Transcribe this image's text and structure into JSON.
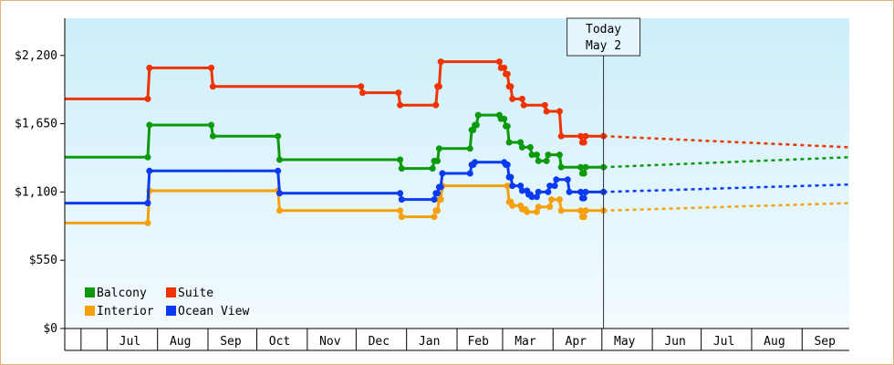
{
  "chart_data": {
    "type": "line",
    "title": "",
    "xlabel": "",
    "ylabel": "",
    "ylim": [
      0,
      2500
    ],
    "y_ticks": [
      {
        "value": 0,
        "label": "$0"
      },
      {
        "value": 550,
        "label": "$550"
      },
      {
        "value": 1100,
        "label": "$1,100"
      },
      {
        "value": 1650,
        "label": "$1,650"
      },
      {
        "value": 2200,
        "label": "$2,200"
      }
    ],
    "x_start": "2024-06-05",
    "x_end": "2025-09-30",
    "month_labels": [
      {
        "date": "2024-07-15",
        "label": "Jul"
      },
      {
        "date": "2024-08-15",
        "label": "Aug"
      },
      {
        "date": "2024-09-15",
        "label": "Sep"
      },
      {
        "date": "2024-10-15",
        "label": "Oct"
      },
      {
        "date": "2024-11-15",
        "label": "Nov"
      },
      {
        "date": "2024-12-15",
        "label": "Dec"
      },
      {
        "date": "2025-01-15",
        "label": "Jan"
      },
      {
        "date": "2025-02-14",
        "label": "Feb"
      },
      {
        "date": "2025-03-15",
        "label": "Mar"
      },
      {
        "date": "2025-04-15",
        "label": "Apr"
      },
      {
        "date": "2025-05-15",
        "label": "May"
      },
      {
        "date": "2025-06-15",
        "label": "Jun"
      },
      {
        "date": "2025-07-15",
        "label": "Jul"
      },
      {
        "date": "2025-08-15",
        "label": "Aug"
      },
      {
        "date": "2025-09-15",
        "label": "Sep"
      }
    ],
    "month_boundaries": [
      "2024-06-15",
      "2024-07-01",
      "2024-08-01",
      "2024-09-01",
      "2024-10-01",
      "2024-11-01",
      "2024-12-01",
      "2025-01-01",
      "2025-02-01",
      "2025-03-01",
      "2025-04-01",
      "2025-05-01",
      "2025-06-01",
      "2025-07-01",
      "2025-08-01",
      "2025-09-01"
    ],
    "today": {
      "date": "2025-05-02",
      "line1": "Today",
      "line2": "May 2"
    },
    "grid": false,
    "legend_position": "bottom-left",
    "series": [
      {
        "name": "Balcony",
        "color": "#0c9a0c",
        "points": [
          [
            "2024-06-05",
            1380
          ],
          [
            "2024-07-26",
            1380
          ],
          [
            "2024-07-27",
            1640
          ],
          [
            "2024-09-03",
            1640
          ],
          [
            "2024-09-04",
            1550
          ],
          [
            "2024-10-14",
            1550
          ],
          [
            "2024-10-15",
            1360
          ],
          [
            "2024-12-28",
            1360
          ],
          [
            "2024-12-29",
            1290
          ],
          [
            "2025-01-17",
            1290
          ],
          [
            "2025-01-18",
            1350
          ],
          [
            "2025-01-20",
            1350
          ],
          [
            "2025-01-21",
            1450
          ],
          [
            "2025-02-09",
            1450
          ],
          [
            "2025-02-10",
            1600
          ],
          [
            "2025-02-11",
            1600
          ],
          [
            "2025-02-12",
            1640
          ],
          [
            "2025-02-13",
            1640
          ],
          [
            "2025-02-14",
            1720
          ],
          [
            "2025-02-27",
            1720
          ],
          [
            "2025-02-28",
            1690
          ],
          [
            "2025-03-02",
            1690
          ],
          [
            "2025-03-03",
            1630
          ],
          [
            "2025-03-04",
            1630
          ],
          [
            "2025-03-05",
            1500
          ],
          [
            "2025-03-12",
            1500
          ],
          [
            "2025-03-13",
            1460
          ],
          [
            "2025-03-18",
            1460
          ],
          [
            "2025-03-19",
            1400
          ],
          [
            "2025-03-22",
            1400
          ],
          [
            "2025-03-23",
            1350
          ],
          [
            "2025-03-28",
            1350
          ],
          [
            "2025-03-29",
            1400
          ],
          [
            "2025-04-05",
            1400
          ],
          [
            "2025-04-06",
            1300
          ],
          [
            "2025-04-18",
            1300
          ],
          [
            "2025-04-19",
            1250
          ],
          [
            "2025-04-20",
            1250
          ],
          [
            "2025-04-21",
            1300
          ],
          [
            "2025-05-02",
            1300
          ]
        ],
        "forecast": [
          [
            "2025-05-02",
            1300
          ],
          [
            "2025-09-30",
            1380
          ]
        ]
      },
      {
        "name": "Suite",
        "color": "#ee3300",
        "points": [
          [
            "2024-06-05",
            1850
          ],
          [
            "2024-07-26",
            1850
          ],
          [
            "2024-07-27",
            2100
          ],
          [
            "2024-09-03",
            2100
          ],
          [
            "2024-09-04",
            1950
          ],
          [
            "2024-12-04",
            1950
          ],
          [
            "2024-12-05",
            1900
          ],
          [
            "2024-12-27",
            1900
          ],
          [
            "2024-12-28",
            1800
          ],
          [
            "2025-01-19",
            1800
          ],
          [
            "2025-01-20",
            1950
          ],
          [
            "2025-01-21",
            1950
          ],
          [
            "2025-01-22",
            2150
          ],
          [
            "2025-02-27",
            2150
          ],
          [
            "2025-02-28",
            2100
          ],
          [
            "2025-03-02",
            2100
          ],
          [
            "2025-03-03",
            2050
          ],
          [
            "2025-03-04",
            2050
          ],
          [
            "2025-03-05",
            1950
          ],
          [
            "2025-03-06",
            1950
          ],
          [
            "2025-03-07",
            1850
          ],
          [
            "2025-03-13",
            1850
          ],
          [
            "2025-03-14",
            1800
          ],
          [
            "2025-03-27",
            1800
          ],
          [
            "2025-03-28",
            1750
          ],
          [
            "2025-04-05",
            1750
          ],
          [
            "2025-04-06",
            1550
          ],
          [
            "2025-04-18",
            1550
          ],
          [
            "2025-04-19",
            1500
          ],
          [
            "2025-04-20",
            1500
          ],
          [
            "2025-04-21",
            1550
          ],
          [
            "2025-05-02",
            1550
          ]
        ],
        "forecast": [
          [
            "2025-05-02",
            1550
          ],
          [
            "2025-09-30",
            1460
          ]
        ]
      },
      {
        "name": "Interior",
        "color": "#f5a00c",
        "points": [
          [
            "2024-06-05",
            850
          ],
          [
            "2024-07-26",
            850
          ],
          [
            "2024-07-27",
            1110
          ],
          [
            "2024-10-14",
            1110
          ],
          [
            "2024-10-15",
            950
          ],
          [
            "2024-12-28",
            950
          ],
          [
            "2024-12-29",
            900
          ],
          [
            "2025-01-18",
            900
          ],
          [
            "2025-01-19",
            950
          ],
          [
            "2025-01-20",
            950
          ],
          [
            "2025-01-21",
            1040
          ],
          [
            "2025-01-22",
            1040
          ],
          [
            "2025-01-23",
            1150
          ],
          [
            "2025-03-04",
            1150
          ],
          [
            "2025-03-05",
            1020
          ],
          [
            "2025-03-06",
            1020
          ],
          [
            "2025-03-07",
            990
          ],
          [
            "2025-03-12",
            990
          ],
          [
            "2025-03-13",
            960
          ],
          [
            "2025-03-15",
            960
          ],
          [
            "2025-03-16",
            940
          ],
          [
            "2025-03-22",
            940
          ],
          [
            "2025-03-23",
            980
          ],
          [
            "2025-03-30",
            980
          ],
          [
            "2025-03-31",
            1040
          ],
          [
            "2025-04-05",
            1040
          ],
          [
            "2025-04-06",
            950
          ],
          [
            "2025-04-18",
            950
          ],
          [
            "2025-04-19",
            900
          ],
          [
            "2025-04-20",
            900
          ],
          [
            "2025-04-21",
            950
          ],
          [
            "2025-05-02",
            950
          ]
        ],
        "forecast": [
          [
            "2025-05-02",
            950
          ],
          [
            "2025-09-30",
            1010
          ]
        ]
      },
      {
        "name": "Ocean View",
        "color": "#0a3bf0",
        "points": [
          [
            "2024-06-05",
            1010
          ],
          [
            "2024-07-26",
            1010
          ],
          [
            "2024-07-27",
            1270
          ],
          [
            "2024-10-14",
            1270
          ],
          [
            "2024-10-15",
            1090
          ],
          [
            "2024-12-28",
            1090
          ],
          [
            "2024-12-29",
            1040
          ],
          [
            "2025-01-18",
            1040
          ],
          [
            "2025-01-19",
            1090
          ],
          [
            "2025-01-20",
            1090
          ],
          [
            "2025-01-21",
            1140
          ],
          [
            "2025-01-22",
            1140
          ],
          [
            "2025-01-23",
            1250
          ],
          [
            "2025-02-09",
            1250
          ],
          [
            "2025-02-10",
            1320
          ],
          [
            "2025-02-11",
            1320
          ],
          [
            "2025-02-12",
            1340
          ],
          [
            "2025-03-02",
            1340
          ],
          [
            "2025-03-03",
            1320
          ],
          [
            "2025-03-04",
            1320
          ],
          [
            "2025-03-05",
            1220
          ],
          [
            "2025-03-06",
            1220
          ],
          [
            "2025-03-07",
            1150
          ],
          [
            "2025-03-12",
            1150
          ],
          [
            "2025-03-13",
            1110
          ],
          [
            "2025-03-16",
            1110
          ],
          [
            "2025-03-17",
            1080
          ],
          [
            "2025-03-18",
            1080
          ],
          [
            "2025-03-19",
            1060
          ],
          [
            "2025-03-22",
            1060
          ],
          [
            "2025-03-23",
            1100
          ],
          [
            "2025-03-29",
            1100
          ],
          [
            "2025-03-30",
            1150
          ],
          [
            "2025-04-02",
            1150
          ],
          [
            "2025-04-03",
            1200
          ],
          [
            "2025-04-10",
            1200
          ],
          [
            "2025-04-11",
            1100
          ],
          [
            "2025-04-18",
            1100
          ],
          [
            "2025-04-19",
            1050
          ],
          [
            "2025-04-20",
            1050
          ],
          [
            "2025-04-21",
            1100
          ],
          [
            "2025-05-02",
            1100
          ]
        ],
        "forecast": [
          [
            "2025-05-02",
            1100
          ],
          [
            "2025-09-30",
            1160
          ]
        ]
      }
    ],
    "legend": [
      {
        "name": "Balcony",
        "color": "#0c9a0c"
      },
      {
        "name": "Suite",
        "color": "#ee3300"
      },
      {
        "name": "Interior",
        "color": "#f5a00c"
      },
      {
        "name": "Ocean View",
        "color": "#0a3bf0"
      }
    ]
  }
}
